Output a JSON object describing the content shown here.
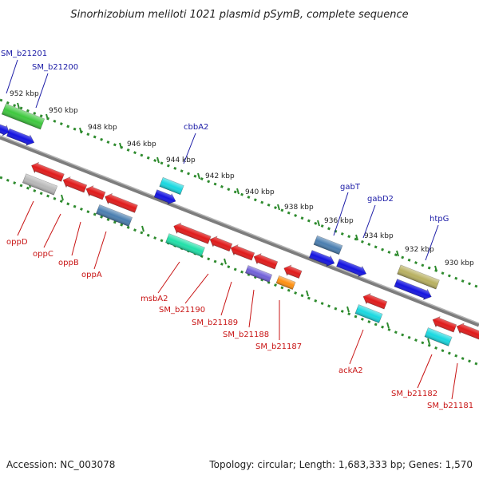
{
  "title": "Sinorhizobium meliloti 1021 plasmid pSymB, complete sequence",
  "footer": {
    "accession": "Accession: NC_003078",
    "summary": "Topology: circular; Length: 1,683,333 bp; Genes: 1,570"
  },
  "scale_labels": [
    "952 kbp",
    "950 kbp",
    "948 kbp",
    "946 kbp",
    "944 kbp",
    "942 kbp",
    "940 kbp",
    "938 kbp",
    "936 kbp",
    "934 kbp",
    "932 kbp",
    "930 kbp"
  ],
  "colors": {
    "backbone": "#7d7d7d",
    "dots": "#2e8b2e",
    "label_blue": "#1a1aa6",
    "label_red": "#c81414",
    "red": "#e01a1a",
    "blue": "#1414e0",
    "green": "#3ec83e",
    "cyan": "#18d8e0",
    "steel": "#4a7eb0",
    "gray": "#b8b8b8",
    "mint": "#20e0a8",
    "orange": "#ff9010",
    "purple": "#7060d8",
    "olive": "#b8b060"
  },
  "gene_labels_top": [
    "SM_b21201",
    "SM_b21200",
    "cbbA2",
    "gabT",
    "gabD2",
    "htpG"
  ],
  "gene_labels_bottom": [
    "oppD",
    "oppC",
    "oppB",
    "oppA",
    "msbA2",
    "SM_b21190",
    "SM_b21189",
    "SM_b21188",
    "SM_b21187",
    "ackA2",
    "SM_b21182",
    "SM_b21181"
  ],
  "genes": [
    {
      "color": "green",
      "strand": "rev",
      "shape": "box"
    },
    {
      "color": "blue",
      "strand": "fwd",
      "shape": "arrow"
    },
    {
      "color": "blue",
      "strand": "fwd",
      "shape": "arrow"
    },
    {
      "color": "cyan",
      "strand": "rev",
      "shape": "box"
    },
    {
      "color": "blue",
      "strand": "fwd",
      "shape": "arrow"
    },
    {
      "color": "steel",
      "strand": "rev",
      "shape": "box"
    },
    {
      "color": "blue",
      "strand": "fwd",
      "shape": "arrow"
    },
    {
      "color": "blue",
      "strand": "fwd",
      "shape": "arrow"
    },
    {
      "color": "olive",
      "strand": "rev",
      "shape": "box"
    },
    {
      "color": "blue",
      "strand": "fwd",
      "shape": "arrow"
    },
    {
      "color": "red",
      "strand": "rev",
      "shape": "arrow"
    },
    {
      "color": "gray",
      "strand": "rev",
      "shape": "box"
    },
    {
      "color": "red",
      "strand": "rev",
      "shape": "arrow"
    },
    {
      "color": "red",
      "strand": "rev",
      "shape": "arrow"
    },
    {
      "color": "red",
      "strand": "rev",
      "shape": "arrow"
    },
    {
      "color": "steel",
      "strand": "rev",
      "shape": "box"
    },
    {
      "color": "red",
      "strand": "rev",
      "shape": "arrow"
    },
    {
      "color": "mint",
      "strand": "rev",
      "shape": "box"
    },
    {
      "color": "red",
      "strand": "rev",
      "shape": "arrow"
    },
    {
      "color": "red",
      "strand": "rev",
      "shape": "arrow"
    },
    {
      "color": "red",
      "strand": "rev",
      "shape": "arrow"
    },
    {
      "color": "purple",
      "strand": "rev",
      "shape": "box"
    },
    {
      "color": "red",
      "strand": "rev",
      "shape": "arrow"
    },
    {
      "color": "orange",
      "strand": "rev",
      "shape": "box"
    },
    {
      "color": "red",
      "strand": "rev",
      "shape": "arrow"
    },
    {
      "color": "cyan",
      "strand": "rev",
      "shape": "box"
    },
    {
      "color": "red",
      "strand": "rev",
      "shape": "arrow"
    },
    {
      "color": "cyan",
      "strand": "rev",
      "shape": "box"
    },
    {
      "color": "red",
      "strand": "rev",
      "shape": "arrow"
    }
  ]
}
